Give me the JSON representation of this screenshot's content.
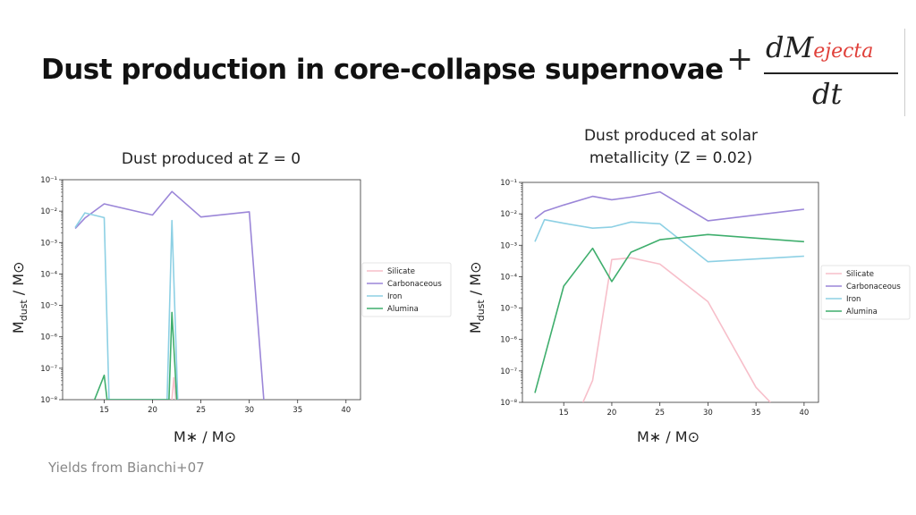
{
  "slide": {
    "title": "Dust production in core-collapse supernovae",
    "equation": {
      "plus": "+",
      "numerator": "dM",
      "subscript": "ejecta",
      "denominator": "dt"
    },
    "footnote": "Yields from Bianchi+07",
    "left_panel": {
      "title_lines": [
        "Dust produced at Z = 0"
      ],
      "ylabel": "M",
      "ylabel_sub": "dust",
      "ylabel_tail": " / M⊙",
      "xlabel": "M∗ / M⊙"
    },
    "right_panel": {
      "title_lines": [
        "Dust produced at solar",
        "metallicity (Z = 0.02)"
      ],
      "ylabel": "M",
      "ylabel_sub": "dust",
      "ylabel_tail": " / M⊙",
      "xlabel": "M∗ / M⊙"
    }
  },
  "chart_data": [
    {
      "type": "line",
      "title": "Dust produced at Z = 0",
      "xlabel": "M∗ / M⊙",
      "ylabel": "Mdust / M⊙",
      "yscale": "log",
      "xlim": [
        10.7,
        41.5
      ],
      "ylim": [
        1e-08,
        0.1
      ],
      "xticks": [
        15,
        20,
        25,
        30,
        35,
        40
      ],
      "yticks": [
        1e-08,
        1e-07,
        1e-06,
        1e-05,
        0.0001,
        0.001,
        0.01,
        0.1
      ],
      "legend_position": "right",
      "series": [
        {
          "name": "Silicate",
          "color": "#f7bfca",
          "points": [
            [
              22,
              1e-08
            ],
            [
              22.2,
              5e-08
            ],
            [
              22.4,
              1e-08
            ]
          ]
        },
        {
          "name": "Carbonaceous",
          "color": "#9b86d8",
          "points": [
            [
              12,
              0.0028
            ],
            [
              13,
              0.006
            ],
            [
              15,
              0.017
            ],
            [
              20,
              0.0075
            ],
            [
              22,
              0.042
            ],
            [
              25,
              0.0065
            ],
            [
              30,
              0.0095
            ],
            [
              31.5,
              1e-08
            ]
          ]
        },
        {
          "name": "Iron",
          "color": "#8dd0e4",
          "points": [
            [
              12,
              0.003
            ],
            [
              13,
              0.0088
            ],
            [
              15,
              0.0062
            ],
            [
              15.5,
              1e-08
            ],
            [
              21.5,
              1e-08
            ],
            [
              22,
              0.005
            ],
            [
              22.6,
              1e-08
            ]
          ]
        },
        {
          "name": "Alumina",
          "color": "#3fae6d",
          "points": [
            [
              14,
              1e-08
            ],
            [
              15,
              6e-08
            ],
            [
              15.3,
              1e-08
            ],
            [
              21.7,
              1e-08
            ],
            [
              22,
              6e-06
            ],
            [
              22.5,
              1e-08
            ]
          ]
        }
      ]
    },
    {
      "type": "line",
      "title": "Dust produced at solar metallicity (Z = 0.02)",
      "xlabel": "M∗ / M⊙",
      "ylabel": "Mdust / M⊙",
      "yscale": "log",
      "xlim": [
        10.7,
        41.5
      ],
      "ylim": [
        1e-08,
        0.1
      ],
      "xticks": [
        15,
        20,
        25,
        30,
        35,
        40
      ],
      "yticks": [
        1e-08,
        1e-07,
        1e-06,
        1e-05,
        0.0001,
        0.001,
        0.01,
        0.1
      ],
      "legend_position": "right",
      "series": [
        {
          "name": "Silicate",
          "color": "#f7bfca",
          "points": [
            [
              17,
              1e-08
            ],
            [
              18,
              5e-08
            ],
            [
              20,
              0.00035
            ],
            [
              22,
              0.0004
            ],
            [
              25,
              0.00025
            ],
            [
              30,
              1.6e-05
            ],
            [
              35,
              3e-08
            ],
            [
              36.5,
              1e-08
            ]
          ]
        },
        {
          "name": "Carbonaceous",
          "color": "#9b86d8",
          "points": [
            [
              12,
              0.007
            ],
            [
              13,
              0.012
            ],
            [
              15,
              0.019
            ],
            [
              18,
              0.036
            ],
            [
              20,
              0.028
            ],
            [
              22,
              0.034
            ],
            [
              25,
              0.05
            ],
            [
              30,
              0.006
            ],
            [
              40,
              0.014
            ]
          ]
        },
        {
          "name": "Iron",
          "color": "#8dd0e4",
          "points": [
            [
              12,
              0.0013
            ],
            [
              13,
              0.0065
            ],
            [
              15,
              0.005
            ],
            [
              18,
              0.0035
            ],
            [
              20,
              0.0038
            ],
            [
              22,
              0.0055
            ],
            [
              25,
              0.0048
            ],
            [
              30,
              0.0003
            ],
            [
              40,
              0.00045
            ]
          ]
        },
        {
          "name": "Alumina",
          "color": "#3fae6d",
          "points": [
            [
              12,
              2e-08
            ],
            [
              15,
              5e-05
            ],
            [
              18,
              0.0008
            ],
            [
              20,
              7e-05
            ],
            [
              22,
              0.0006
            ],
            [
              25,
              0.0015
            ],
            [
              30,
              0.0022
            ],
            [
              40,
              0.0013
            ]
          ]
        }
      ]
    }
  ]
}
